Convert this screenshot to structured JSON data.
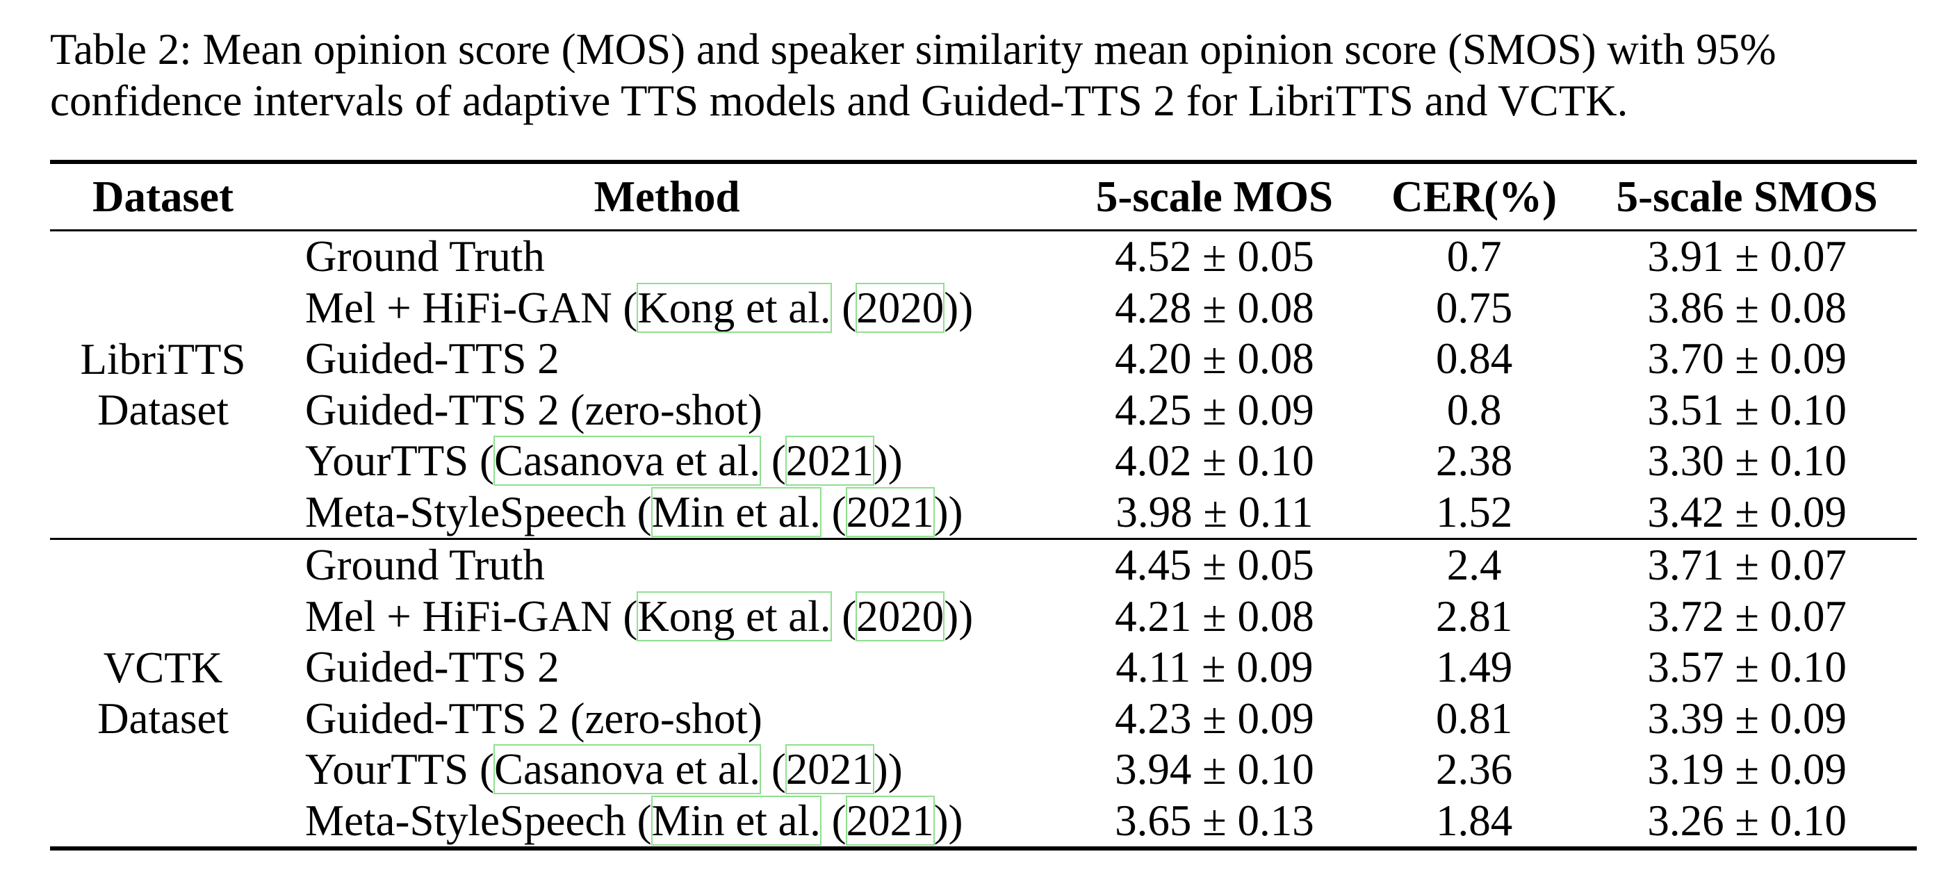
{
  "caption": "Table 2: Mean opinion score (MOS) and speaker similarity mean opinion score (SMOS) with 95% confidence intervals of adaptive TTS models and Guided-TTS 2 for LibriTTS and VCTK.",
  "columns": [
    "Dataset",
    "Method",
    "5-scale MOS",
    "CER(%)",
    "5-scale SMOS"
  ],
  "groups": [
    {
      "dataset_line1": "LibriTTS",
      "dataset_line2": "Dataset",
      "rows": [
        {
          "method": "Ground Truth",
          "mos": "4.52 ± 0.05",
          "cer": "0.7",
          "smos": "3.91 ± 0.07"
        },
        {
          "method_prefix": "Mel + HiFi-GAN (",
          "cite_author": "Kong et al.",
          "cite_year": "2020",
          "method_suffix": "))",
          "mos": "4.28 ± 0.08",
          "cer": "0.75",
          "smos": "3.86 ± 0.08"
        },
        {
          "method": "Guided-TTS 2",
          "mos": "4.20 ± 0.08",
          "cer": "0.84",
          "smos": "3.70 ± 0.09"
        },
        {
          "method": "Guided-TTS 2 (zero-shot)",
          "mos": "4.25 ± 0.09",
          "cer": "0.8",
          "smos": "3.51 ± 0.10"
        },
        {
          "method_prefix": "YourTTS (",
          "cite_author": "Casanova et al.",
          "cite_year": "2021",
          "method_suffix": "))",
          "mos": "4.02 ± 0.10",
          "cer": "2.38",
          "smos": "3.30 ± 0.10"
        },
        {
          "method_prefix": "Meta-StyleSpeech (",
          "cite_author": "Min et al.",
          "cite_year": "2021",
          "method_suffix": "))",
          "mos": "3.98 ± 0.11",
          "cer": "1.52",
          "smos": "3.42 ± 0.09"
        }
      ]
    },
    {
      "dataset_line1": "VCTK",
      "dataset_line2": "Dataset",
      "rows": [
        {
          "method": "Ground Truth",
          "mos": "4.45 ± 0.05",
          "cer": "2.4",
          "smos": "3.71 ± 0.07"
        },
        {
          "method_prefix": "Mel + HiFi-GAN (",
          "cite_author": "Kong et al.",
          "cite_year": "2020",
          "method_suffix": "))",
          "mos": "4.21 ± 0.08",
          "cer": "2.81",
          "smos": "3.72 ± 0.07"
        },
        {
          "method": "Guided-TTS 2",
          "mos": "4.11 ± 0.09",
          "cer": "1.49",
          "smos": "3.57 ± 0.10"
        },
        {
          "method": "Guided-TTS 2 (zero-shot)",
          "mos": "4.23 ± 0.09",
          "cer": "0.81",
          "smos": "3.39 ± 0.09"
        },
        {
          "method_prefix": "YourTTS (",
          "cite_author": "Casanova et al.",
          "cite_year": "2021",
          "method_suffix": "))",
          "mos": "3.94 ± 0.10",
          "cer": "2.36",
          "smos": "3.19 ± 0.09"
        },
        {
          "method_prefix": "Meta-StyleSpeech (",
          "cite_author": "Min et al.",
          "cite_year": "2021",
          "method_suffix": "))",
          "mos": "3.65 ± 0.13",
          "cer": "1.84",
          "smos": "3.26 ± 0.10"
        }
      ]
    }
  ]
}
